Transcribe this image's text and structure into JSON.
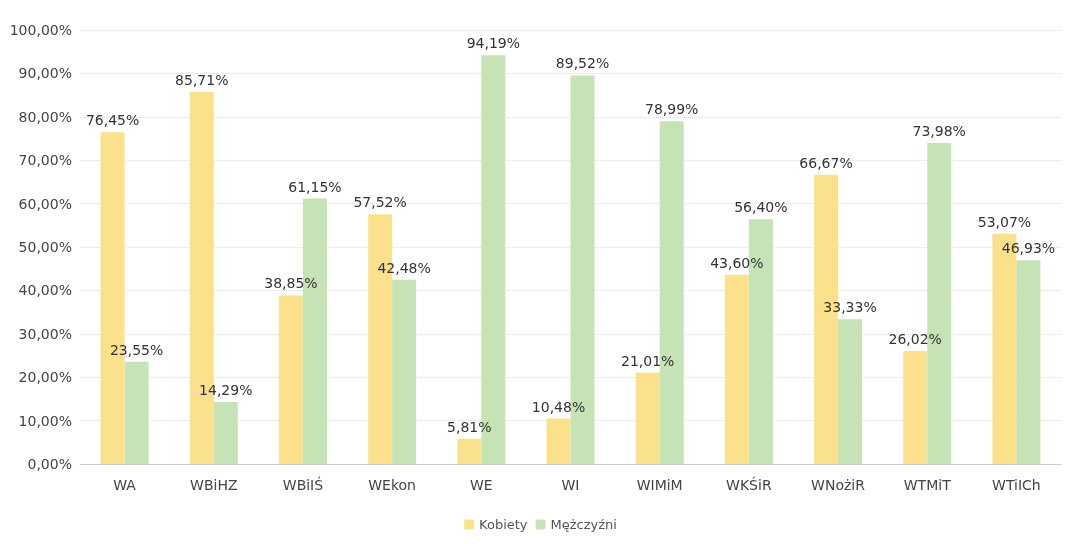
{
  "chart_data": {
    "type": "bar",
    "categories": [
      "WA",
      "WBiHZ",
      "WBiIŚ",
      "WEkon",
      "WE",
      "WI",
      "WIMiM",
      "WKŚiR",
      "WNożiR",
      "WTMiT",
      "WTiICh"
    ],
    "series": [
      {
        "name": "Kobiety",
        "color": "#fbe18c",
        "values": [
          76.45,
          85.71,
          38.85,
          57.52,
          5.81,
          10.48,
          21.01,
          43.6,
          66.67,
          26.02,
          53.07
        ],
        "value_labels": [
          "76,45%",
          "85,71%",
          "38,85%",
          "57,52%",
          "5,81%",
          "10,48%",
          "21,01%",
          "43,60%",
          "66,67%",
          "26,02%",
          "53,07%"
        ]
      },
      {
        "name": "Mężczyźni",
        "color": "#c6e3b5",
        "values": [
          23.55,
          14.29,
          61.15,
          42.48,
          94.19,
          89.52,
          78.99,
          56.4,
          33.33,
          73.98,
          46.93
        ],
        "value_labels": [
          "23,55%",
          "14,29%",
          "61,15%",
          "42,48%",
          "94,19%",
          "89,52%",
          "78,99%",
          "56,40%",
          "33,33%",
          "73,98%",
          "46,93%"
        ]
      }
    ],
    "ylim": [
      0,
      100
    ],
    "yticks": [
      {
        "value": 0,
        "label": "0,00%"
      },
      {
        "value": 10,
        "label": "10,00%"
      },
      {
        "value": 20,
        "label": "20,00%"
      },
      {
        "value": 30,
        "label": "30,00%"
      },
      {
        "value": 40,
        "label": "40,00%"
      },
      {
        "value": 50,
        "label": "50,00%"
      },
      {
        "value": 60,
        "label": "60,00%"
      },
      {
        "value": 70,
        "label": "70,00%"
      },
      {
        "value": 80,
        "label": "80,00%"
      },
      {
        "value": 90,
        "label": "90,00%"
      },
      {
        "value": 100,
        "label": "100,00%"
      }
    ],
    "grid": "y",
    "legend": "bottom"
  }
}
